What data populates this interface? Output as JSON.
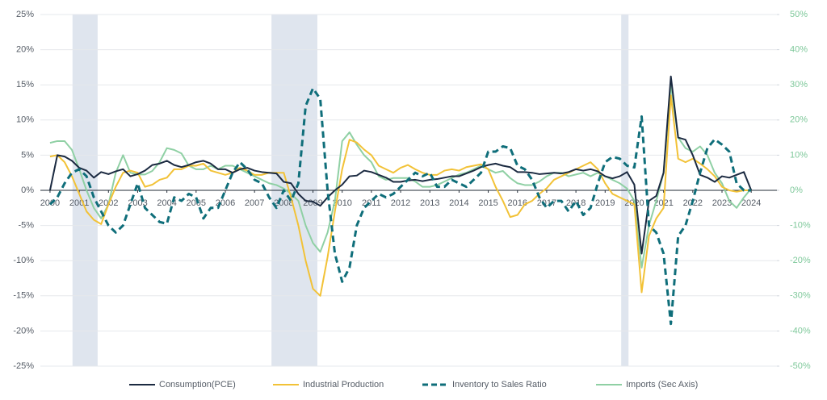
{
  "chart_data": {
    "type": "line",
    "x": [
      2000,
      2000.25,
      2000.5,
      2000.75,
      2001,
      2001.25,
      2001.5,
      2001.75,
      2002,
      2002.25,
      2002.5,
      2002.75,
      2003,
      2003.25,
      2003.5,
      2003.75,
      2004,
      2004.25,
      2004.5,
      2004.75,
      2005,
      2005.25,
      2005.5,
      2005.75,
      2006,
      2006.25,
      2006.5,
      2006.75,
      2007,
      2007.25,
      2007.5,
      2007.75,
      2008,
      2008.25,
      2008.5,
      2008.75,
      2009,
      2009.25,
      2009.5,
      2009.75,
      2010,
      2010.25,
      2010.5,
      2010.75,
      2011,
      2011.25,
      2011.5,
      2011.75,
      2012,
      2012.25,
      2012.5,
      2012.75,
      2013,
      2013.25,
      2013.5,
      2013.75,
      2014,
      2014.25,
      2014.5,
      2014.75,
      2015,
      2015.25,
      2015.5,
      2015.75,
      2016,
      2016.25,
      2016.5,
      2016.75,
      2017,
      2017.25,
      2017.5,
      2017.75,
      2018,
      2018.25,
      2018.5,
      2018.75,
      2019,
      2019.25,
      2019.5,
      2019.75,
      2020,
      2020.25,
      2020.5,
      2020.75,
      2021,
      2021.25,
      2021.5,
      2021.75,
      2022,
      2022.25,
      2022.5,
      2022.75,
      2023,
      2023.25,
      2023.5,
      2023.75,
      2024
    ],
    "xlim": [
      1999.67,
      2024.88
    ],
    "xticks": [
      2000,
      2001,
      2002,
      2003,
      2004,
      2005,
      2006,
      2007,
      2008,
      2009,
      2010,
      2011,
      2012,
      2013,
      2014,
      2015,
      2016,
      2017,
      2018,
      2019,
      2020,
      2021,
      2022,
      2023,
      2024
    ],
    "ylim": [
      -25,
      25
    ],
    "yticks": [
      {
        "value": 25,
        "label": "25%"
      },
      {
        "value": 20,
        "label": "20%"
      },
      {
        "value": 15,
        "label": "15%"
      },
      {
        "value": 10,
        "label": "10%"
      },
      {
        "value": 5,
        "label": "5%"
      },
      {
        "value": 0,
        "label": "0%"
      },
      {
        "value": -5,
        "label": "-5%"
      },
      {
        "value": -10,
        "label": "-10%"
      },
      {
        "value": -15,
        "label": "-15%"
      },
      {
        "value": -20,
        "label": "-20%"
      },
      {
        "value": -25,
        "label": "-25%"
      }
    ],
    "y2lim": [
      -50,
      50
    ],
    "y2ticks": [
      {
        "value": 50,
        "label": "50%"
      },
      {
        "value": 40,
        "label": "40%"
      },
      {
        "value": 30,
        "label": "30%"
      },
      {
        "value": 20,
        "label": "20%"
      },
      {
        "value": 10,
        "label": "10%"
      },
      {
        "value": 0,
        "label": "0%"
      },
      {
        "value": -10,
        "label": "-10%"
      },
      {
        "value": -20,
        "label": "-20%"
      },
      {
        "value": -30,
        "label": "-30%"
      },
      {
        "value": -40,
        "label": "-40%"
      },
      {
        "value": -50,
        "label": "-50%"
      }
    ],
    "grid": true,
    "shaded_periods": [
      {
        "start": 2000.77,
        "end": 2001.63
      },
      {
        "start": 2007.58,
        "end": 2009.15
      },
      {
        "start": 2019.55,
        "end": 2019.8
      }
    ],
    "shade_color": "#dfe5ee",
    "legend": "bottom",
    "series": [
      {
        "name": "Consumption(PCE)",
        "color": "#1b2a41",
        "line_style": "solid",
        "values": [
          0,
          5,
          4.8,
          4.2,
          3.2,
          2.8,
          1.8,
          2.6,
          2.3,
          2.7,
          3.0,
          2.0,
          2.3,
          2.8,
          3.6,
          3.8,
          4.2,
          3.6,
          3.3,
          3.6,
          4.0,
          4.2,
          3.8,
          3.0,
          3.0,
          2.5,
          3.0,
          3.2,
          2.8,
          2.6,
          2.5,
          2.4,
          1.2,
          1.0,
          -0.5,
          -1.5,
          -1.6,
          -2.2,
          -1.0,
          0.0,
          0.8,
          2.0,
          2.1,
          2.8,
          2.6,
          2.2,
          1.8,
          1.2,
          1.2,
          1.4,
          1.5,
          1.3,
          1.5,
          1.6,
          1.8,
          2.0,
          2.0,
          2.4,
          2.8,
          3.3,
          3.6,
          3.8,
          3.5,
          3.3,
          2.6,
          2.6,
          2.5,
          2.3,
          2.4,
          2.5,
          2.4,
          2.6,
          3.0,
          2.8,
          3.0,
          2.7,
          2.0,
          1.7,
          2.0,
          2.6,
          0.8,
          -9.0,
          -1.5,
          -0.8,
          2.5,
          16.2,
          7.5,
          7.2,
          5.0,
          2.2,
          1.8,
          1.2,
          2.0,
          1.8,
          2.2,
          2.6,
          0
        ]
      },
      {
        "name": "Industrial Production",
        "color": "#f2c237",
        "line_style": "solid",
        "values": [
          4.8,
          5.0,
          4.0,
          2.0,
          -0.5,
          -3.0,
          -4.2,
          -4.8,
          -2.0,
          0.5,
          2.5,
          2.8,
          2.5,
          0.5,
          0.8,
          1.5,
          1.8,
          3.0,
          3.0,
          3.5,
          3.5,
          3.8,
          2.8,
          2.5,
          2.2,
          2.5,
          3.2,
          2.8,
          2.2,
          2.2,
          2.5,
          2.5,
          2.5,
          -1.0,
          -5.0,
          -10.0,
          -14.0,
          -15.0,
          -9.5,
          -3.0,
          3.0,
          7.2,
          6.8,
          5.8,
          5.0,
          3.5,
          3.0,
          2.5,
          3.2,
          3.6,
          3.0,
          2.5,
          2.2,
          2.2,
          2.8,
          3.0,
          2.8,
          3.3,
          3.5,
          3.7,
          3.0,
          0.5,
          -1.5,
          -3.8,
          -3.5,
          -2.0,
          -1.5,
          -0.5,
          0.3,
          1.5,
          2.0,
          2.5,
          3.0,
          3.5,
          4.0,
          3.0,
          1.0,
          -0.5,
          -1.0,
          -1.5,
          -2.0,
          -14.5,
          -6.5,
          -4.0,
          -2.5,
          13.5,
          4.5,
          4.0,
          4.5,
          3.8,
          3.0,
          2.0,
          0.5,
          0.0,
          -0.2,
          0.0,
          0.0
        ]
      },
      {
        "name": "Inventory to Sales Ratio",
        "color": "#0f6e7a",
        "line_style": "dashed",
        "axis": "y2",
        "values": [
          -4,
          -2,
          2,
          5,
          6,
          4,
          -2,
          -6,
          -10,
          -12,
          -10,
          -4,
          2,
          -5,
          -7,
          -9,
          -9.5,
          -2,
          -3,
          -1,
          -2,
          -8,
          -5,
          -5,
          0,
          5,
          8,
          6,
          3,
          2,
          -2,
          -5,
          0,
          -3,
          2,
          24,
          29,
          26,
          0,
          -18,
          -26,
          -22,
          -10,
          -5,
          -3,
          -1,
          -2,
          -1,
          1,
          3,
          5,
          4,
          5,
          1,
          1,
          3,
          2,
          1,
          3,
          5,
          11,
          11,
          12.5,
          12,
          7,
          6,
          3,
          -2,
          -5,
          -3,
          -3,
          -6,
          -3,
          -7,
          -5,
          2,
          8,
          9.5,
          9,
          7,
          6.5,
          21,
          -10,
          -12,
          -18,
          -38,
          -13,
          -10,
          -3,
          5,
          12,
          14.5,
          13,
          11,
          2,
          0,
          0
        ]
      },
      {
        "name": "Imports (Sec Axis)",
        "color": "#8fd0a4",
        "line_style": "solid",
        "axis": "y2",
        "values": [
          13.5,
          14,
          14,
          11.5,
          6,
          0,
          -5,
          -8,
          -4,
          5,
          10,
          5,
          4.5,
          4.5,
          5.5,
          8,
          12,
          11.5,
          10.5,
          7,
          6,
          6,
          7,
          6,
          7,
          7,
          6,
          5,
          4,
          3,
          2,
          1.5,
          0.5,
          -1,
          -3,
          -10,
          -15,
          -17.5,
          -12,
          -3,
          14,
          16.5,
          13,
          10,
          8,
          4,
          3,
          3.5,
          3.5,
          3.5,
          2.5,
          1,
          1,
          1.5,
          2.5,
          3.5,
          4.5,
          5,
          6,
          7,
          6,
          5,
          5.5,
          3.5,
          2,
          1.5,
          1.5,
          2.5,
          4,
          5,
          5,
          4,
          4.5,
          5,
          4,
          5,
          4,
          3,
          2,
          0.5,
          -3,
          -22,
          -10,
          -3,
          5,
          30,
          15,
          12,
          11,
          12.5,
          10,
          5,
          2,
          -3,
          -5,
          -2,
          0.5
        ]
      }
    ]
  }
}
